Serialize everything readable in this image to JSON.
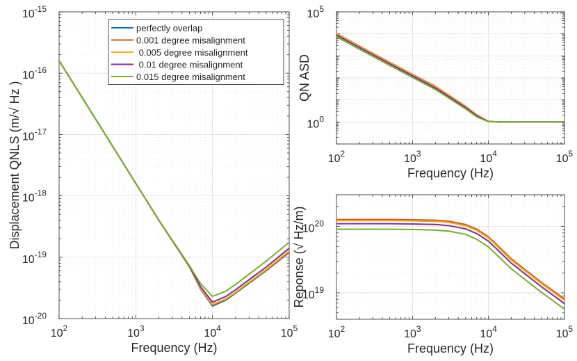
{
  "figure": {
    "background": "#ffffff"
  },
  "chart_data": [
    {
      "id": "qnls",
      "type": "line",
      "title": "",
      "xscale": "log",
      "yscale": "log",
      "xlabel": "Frequency (Hz)",
      "ylabel": "Displacement QNLS (m/√ Hz )",
      "xlim": [
        100,
        100000
      ],
      "ylim": [
        1e-20,
        1e-15
      ],
      "grid": true,
      "minor_grid": true,
      "xticks": [
        {
          "value": 100,
          "base": "10",
          "exp": "2"
        },
        {
          "value": 1000,
          "base": "10",
          "exp": "3"
        },
        {
          "value": 10000,
          "base": "10",
          "exp": "4"
        },
        {
          "value": 100000,
          "base": "10",
          "exp": "5"
        }
      ],
      "yticks": [
        {
          "value": 1e-20,
          "base": "10",
          "exp": "-20"
        },
        {
          "value": 1e-19,
          "base": "10",
          "exp": "-19"
        },
        {
          "value": 1e-18,
          "base": "10",
          "exp": "-18"
        },
        {
          "value": 1e-17,
          "base": "10",
          "exp": "-17"
        },
        {
          "value": 1e-16,
          "base": "10",
          "exp": "-16"
        },
        {
          "value": 1e-15,
          "base": "10",
          "exp": "-15"
        }
      ],
      "legend": {
        "position": "top-right",
        "entries": [
          "perfectly overlap",
          "0.001 degree misalignment",
          " 0.005 degree misalignment",
          " 0.01 degree misalignment",
          "0.015 degree misalignment"
        ]
      },
      "x": [
        100,
        200,
        500,
        1000,
        2000,
        5000,
        7000,
        10000,
        15000,
        20000,
        50000,
        100000
      ],
      "series": [
        {
          "name": "perfectly overlap",
          "color": "#0072BD",
          "values": [
            1.6e-16,
            4e-17,
            6.4e-18,
            1.6e-18,
            4e-19,
            7e-20,
            3e-20,
            1.6e-20,
            2e-20,
            2.6e-20,
            6e-20,
            1.2e-19
          ]
        },
        {
          "name": "0.001 degree misalignment",
          "color": "#D95319",
          "values": [
            1.6e-16,
            4e-17,
            6.4e-18,
            1.6e-18,
            4e-19,
            7e-20,
            3.05e-20,
            1.65e-20,
            2.05e-20,
            2.65e-20,
            6.1e-20,
            1.22e-19
          ]
        },
        {
          "name": " 0.005 degree misalignment",
          "color": "#EDB120",
          "values": [
            1.6e-16,
            4e-17,
            6.4e-18,
            1.6e-18,
            4e-19,
            7e-20,
            3.1e-20,
            1.7e-20,
            2.1e-20,
            2.7e-20,
            6.3e-20,
            1.27e-19
          ]
        },
        {
          "name": " 0.01 degree misalignment",
          "color": "#7E2F8E",
          "values": [
            1.6e-16,
            4e-17,
            6.4e-18,
            1.6e-18,
            4e-19,
            7.1e-20,
            3.3e-20,
            1.85e-20,
            2.3e-20,
            2.95e-20,
            6.9e-20,
            1.4e-19
          ]
        },
        {
          "name": "0.015 degree misalignment",
          "color": "#77AC30",
          "values": [
            1.6e-16,
            4e-17,
            6.4e-18,
            1.6e-18,
            4e-19,
            7.3e-20,
            3.7e-20,
            2.3e-20,
            2.8e-20,
            3.6e-20,
            8.6e-20,
            1.75e-19
          ]
        }
      ]
    },
    {
      "id": "qnasd",
      "type": "line",
      "title": "",
      "xscale": "log",
      "yscale": "log",
      "xlabel": "Frequency (Hz)",
      "ylabel": "QN ASD",
      "xlim": [
        100,
        100000
      ],
      "ylim": [
        0.1,
        100000
      ],
      "grid": true,
      "minor_grid": true,
      "xticks": [
        {
          "value": 100,
          "base": "10",
          "exp": "2"
        },
        {
          "value": 1000,
          "base": "10",
          "exp": "3"
        },
        {
          "value": 10000,
          "base": "10",
          "exp": "4"
        },
        {
          "value": 100000,
          "base": "10",
          "exp": "5"
        }
      ],
      "yticks": [
        {
          "value": 1,
          "base": "10",
          "exp": "0"
        },
        {
          "value": 100000,
          "base": "10",
          "exp": "5"
        }
      ],
      "x": [
        100,
        200,
        500,
        1000,
        2000,
        5000,
        7000,
        10000,
        15000,
        20000,
        50000,
        100000
      ],
      "series": [
        {
          "name": "perfectly overlap",
          "color": "#0072BD",
          "values": [
            10000,
            2700,
            500,
            140,
            40,
            5,
            2,
            1.05,
            1,
            1,
            1,
            1
          ]
        },
        {
          "name": "0.001 degree misalignment",
          "color": "#D95319",
          "values": [
            10500,
            2800,
            520,
            145,
            42,
            5.2,
            2.1,
            1.06,
            1,
            1,
            1,
            1
          ]
        },
        {
          "name": " 0.005 degree misalignment",
          "color": "#EDB120",
          "values": [
            10000,
            2700,
            500,
            140,
            40,
            5,
            2,
            1.05,
            1,
            1,
            1,
            1
          ]
        },
        {
          "name": " 0.01 degree misalignment",
          "color": "#7E2F8E",
          "values": [
            8800,
            2400,
            440,
            125,
            35,
            4.5,
            1.9,
            1.04,
            1,
            1,
            1,
            1
          ]
        },
        {
          "name": "0.015 degree misalignment",
          "color": "#77AC30",
          "values": [
            7400,
            2000,
            370,
            105,
            30,
            3.9,
            1.7,
            1.03,
            1,
            1,
            1,
            1
          ]
        }
      ]
    },
    {
      "id": "response",
      "type": "line",
      "title": "",
      "xscale": "log",
      "yscale": "log",
      "xlabel": "Frequency (Hz)",
      "ylabel": "Reponse (√ Hz/m)",
      "xlim": [
        100,
        100000
      ],
      "ylim": [
        4e+18,
        3e+20
      ],
      "grid": true,
      "minor_grid": true,
      "xticks": [
        {
          "value": 100,
          "base": "10",
          "exp": "2"
        },
        {
          "value": 1000,
          "base": "10",
          "exp": "3"
        },
        {
          "value": 10000,
          "base": "10",
          "exp": "4"
        },
        {
          "value": 100000,
          "base": "10",
          "exp": "5"
        }
      ],
      "yticks": [
        {
          "value": 1e+19,
          "base": "10",
          "exp": "19"
        },
        {
          "value": 1e+20,
          "base": "10",
          "exp": "20"
        }
      ],
      "x": [
        100,
        200,
        500,
        1000,
        2000,
        3000,
        5000,
        7000,
        10000,
        20000,
        50000,
        100000
      ],
      "series": [
        {
          "name": "perfectly overlap",
          "color": "#0072BD",
          "values": [
            1.25e+20,
            1.25e+20,
            1.25e+20,
            1.24e+20,
            1.22e+20,
            1.18e+20,
            1.05e+20,
            8.9e+19,
            6.9e+19,
            3.2e+19,
            1.4e+19,
            7.9e+18
          ]
        },
        {
          "name": "0.001 degree misalignment",
          "color": "#D95319",
          "values": [
            1.27e+20,
            1.27e+20,
            1.27e+20,
            1.26e+20,
            1.24e+20,
            1.2e+20,
            1.07e+20,
            9.1e+19,
            7e+19,
            3.25e+19,
            1.43e+19,
            8.1e+18
          ]
        },
        {
          "name": " 0.005 degree misalignment",
          "color": "#EDB120",
          "values": [
            1.22e+20,
            1.22e+20,
            1.22e+20,
            1.21e+20,
            1.19e+20,
            1.15e+20,
            1.02e+20,
            8.7e+19,
            6.7e+19,
            3.1e+19,
            1.37e+19,
            7.7e+18
          ]
        },
        {
          "name": " 0.01 degree misalignment",
          "color": "#7E2F8E",
          "values": [
            1.1e+20,
            1.1e+20,
            1.1e+20,
            1.09e+20,
            1.07e+20,
            1.03e+20,
            9.2e+19,
            7.8e+19,
            6e+19,
            2.8e+19,
            1.23e+19,
            6.9e+18
          ]
        },
        {
          "name": "0.015 degree misalignment",
          "color": "#77AC30",
          "values": [
            9.1e+19,
            9.1e+19,
            9.1e+19,
            9e+19,
            8.8e+19,
            8.5e+19,
            7.6e+19,
            6.4e+19,
            4.9e+19,
            2.3e+19,
            1.01e+19,
            5.7e+18
          ]
        }
      ]
    }
  ]
}
